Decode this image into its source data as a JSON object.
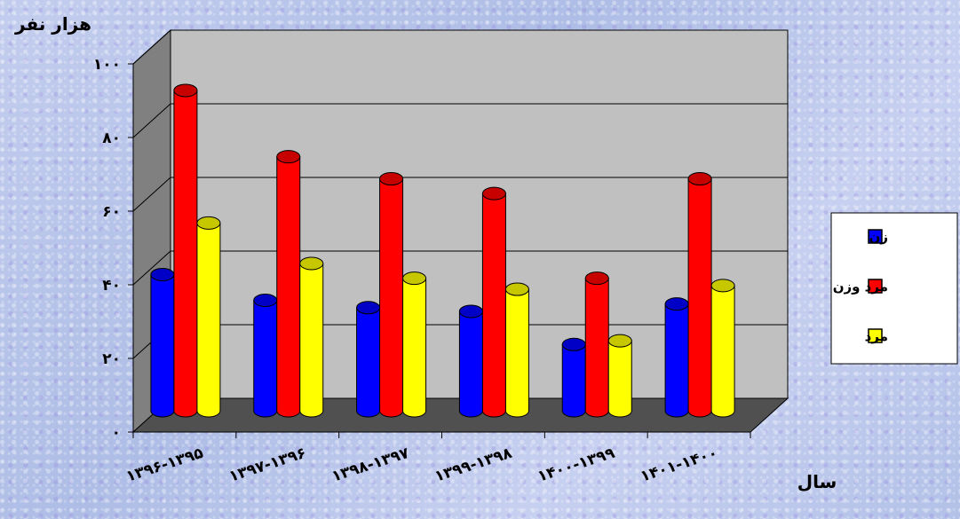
{
  "chart_data": {
    "type": "bar",
    "ylabel": "هزار نفر",
    "xlabel": "سال",
    "ylim": [
      0,
      100
    ],
    "yticks": [
      "۰",
      "۲۰",
      "۴۰",
      "۶۰",
      "۸۰",
      "۱۰۰"
    ],
    "categories": [
      "۱۳۹۶-۱۳۹۵",
      "۱۳۹۷-۱۳۹۶",
      "۱۳۹۸-۱۳۹۷",
      "۱۳۹۹-۱۳۹۸",
      "۱۴۰۰-۱۳۹۹",
      "۱۴۰۱-۱۴۰۰"
    ],
    "series": [
      {
        "name": "زن",
        "color": "#0000ff",
        "values": [
          37,
          30,
          28,
          27,
          18,
          29
        ]
      },
      {
        "name": "مرد وزن",
        "color": "#ff0000",
        "values": [
          87,
          69,
          63,
          59,
          36,
          63
        ]
      },
      {
        "name": "مرد",
        "color": "#ffff00",
        "values": [
          51,
          40,
          36,
          33,
          19,
          34
        ]
      }
    ],
    "legend_position": "right",
    "grid": true
  }
}
